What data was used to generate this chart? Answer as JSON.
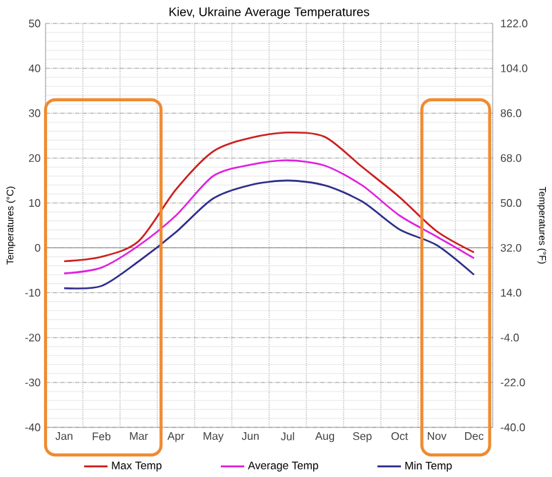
{
  "chart_data": {
    "type": "line",
    "title": "Kiev, Ukraine Average Temperatures",
    "ylabel": "Temperatures (°C)",
    "y2label": "Temperatures (°F)",
    "categories": [
      "Jan",
      "Feb",
      "Mar",
      "Apr",
      "May",
      "Jun",
      "Jul",
      "Aug",
      "Sep",
      "Oct",
      "Nov",
      "Dec"
    ],
    "series": [
      {
        "name": "Max Temp",
        "color": "#cc1f1f",
        "values": [
          -3,
          -2,
          1.5,
          13,
          21.5,
          24.5,
          25.7,
          24.7,
          18,
          11.3,
          3.7,
          -1
        ]
      },
      {
        "name": "Average Temp",
        "color": "#e020e0",
        "values": [
          -5.7,
          -4.4,
          0.5,
          7.2,
          16,
          18.5,
          19.5,
          18.3,
          13.9,
          7.2,
          2.5,
          -2.3
        ]
      },
      {
        "name": "Min Temp",
        "color": "#2e2e8a",
        "values": [
          -9,
          -8.5,
          -3,
          3.5,
          11,
          14,
          15,
          13.9,
          10.3,
          4.1,
          0.6,
          -6
        ]
      }
    ],
    "ylim": [
      -40,
      50
    ],
    "yticks": [
      -40,
      -30,
      -20,
      -10,
      0,
      10,
      20,
      30,
      40,
      50
    ],
    "y2lim": [
      -40,
      122
    ],
    "y2ticks": [
      {
        "value": -40,
        "label": "-40.0"
      },
      {
        "value": -22,
        "label": "-22.0"
      },
      {
        "value": -4,
        "label": "-4.0"
      },
      {
        "value": 14,
        "label": "14.0"
      },
      {
        "value": 32,
        "label": "32.0"
      },
      {
        "value": 50,
        "label": "50.0"
      },
      {
        "value": 68,
        "label": "68.0"
      },
      {
        "value": 86,
        "label": "86.0"
      },
      {
        "value": 104,
        "label": "104.0"
      },
      {
        "value": 122,
        "label": "122.0"
      }
    ],
    "grid": true,
    "legend": "bottom",
    "marker": "none",
    "line_style": "solid"
  }
}
